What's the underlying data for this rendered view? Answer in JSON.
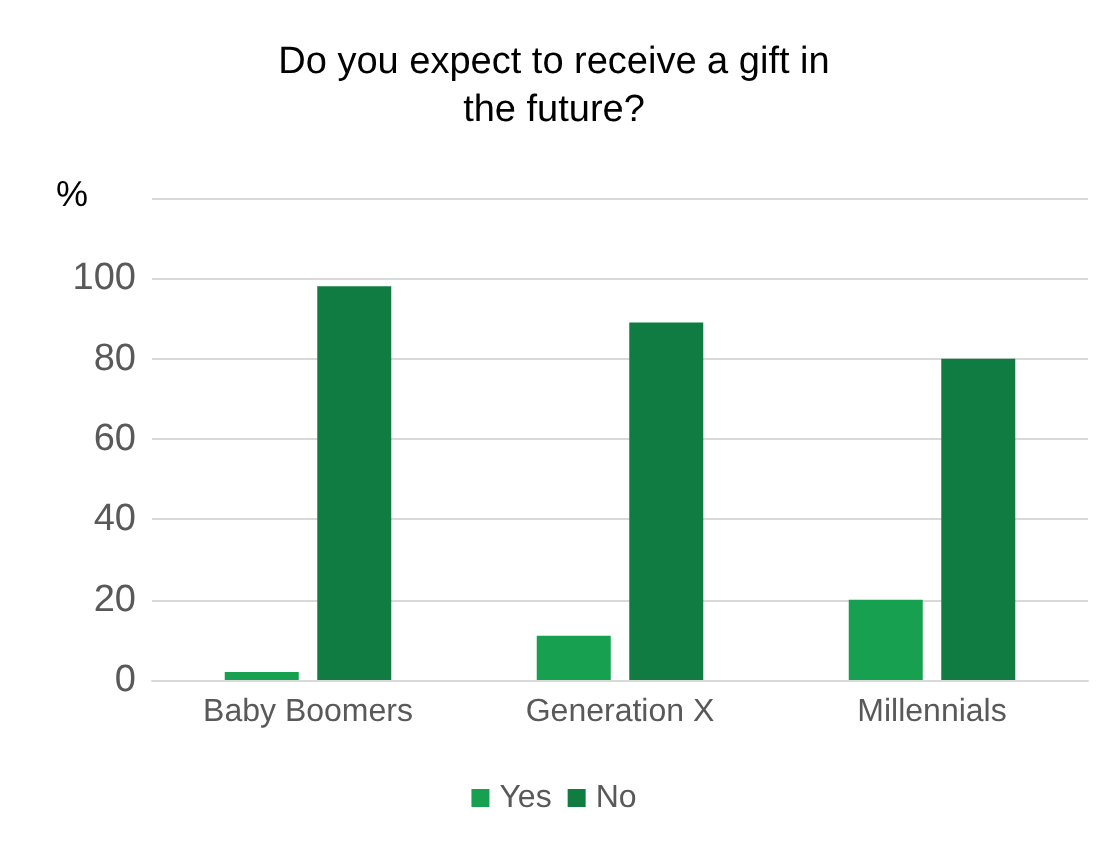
{
  "chart_data": {
    "type": "bar",
    "title": "Do you expect to receive a gift in\nthe future?",
    "ylabel": "%",
    "categories": [
      "Baby Boomers",
      "Generation X",
      "Millennials"
    ],
    "series": [
      {
        "name": "Yes",
        "color": "#17a050",
        "values": [
          2,
          11,
          20
        ]
      },
      {
        "name": "No",
        "color": "#107c41",
        "values": [
          98,
          89,
          80
        ]
      }
    ],
    "ylim": [
      0,
      120
    ],
    "yticks": [
      0,
      20,
      40,
      60,
      80,
      100,
      {
        "value": 120,
        "label": null
      }
    ],
    "grid": "y",
    "legend": "bottom"
  }
}
